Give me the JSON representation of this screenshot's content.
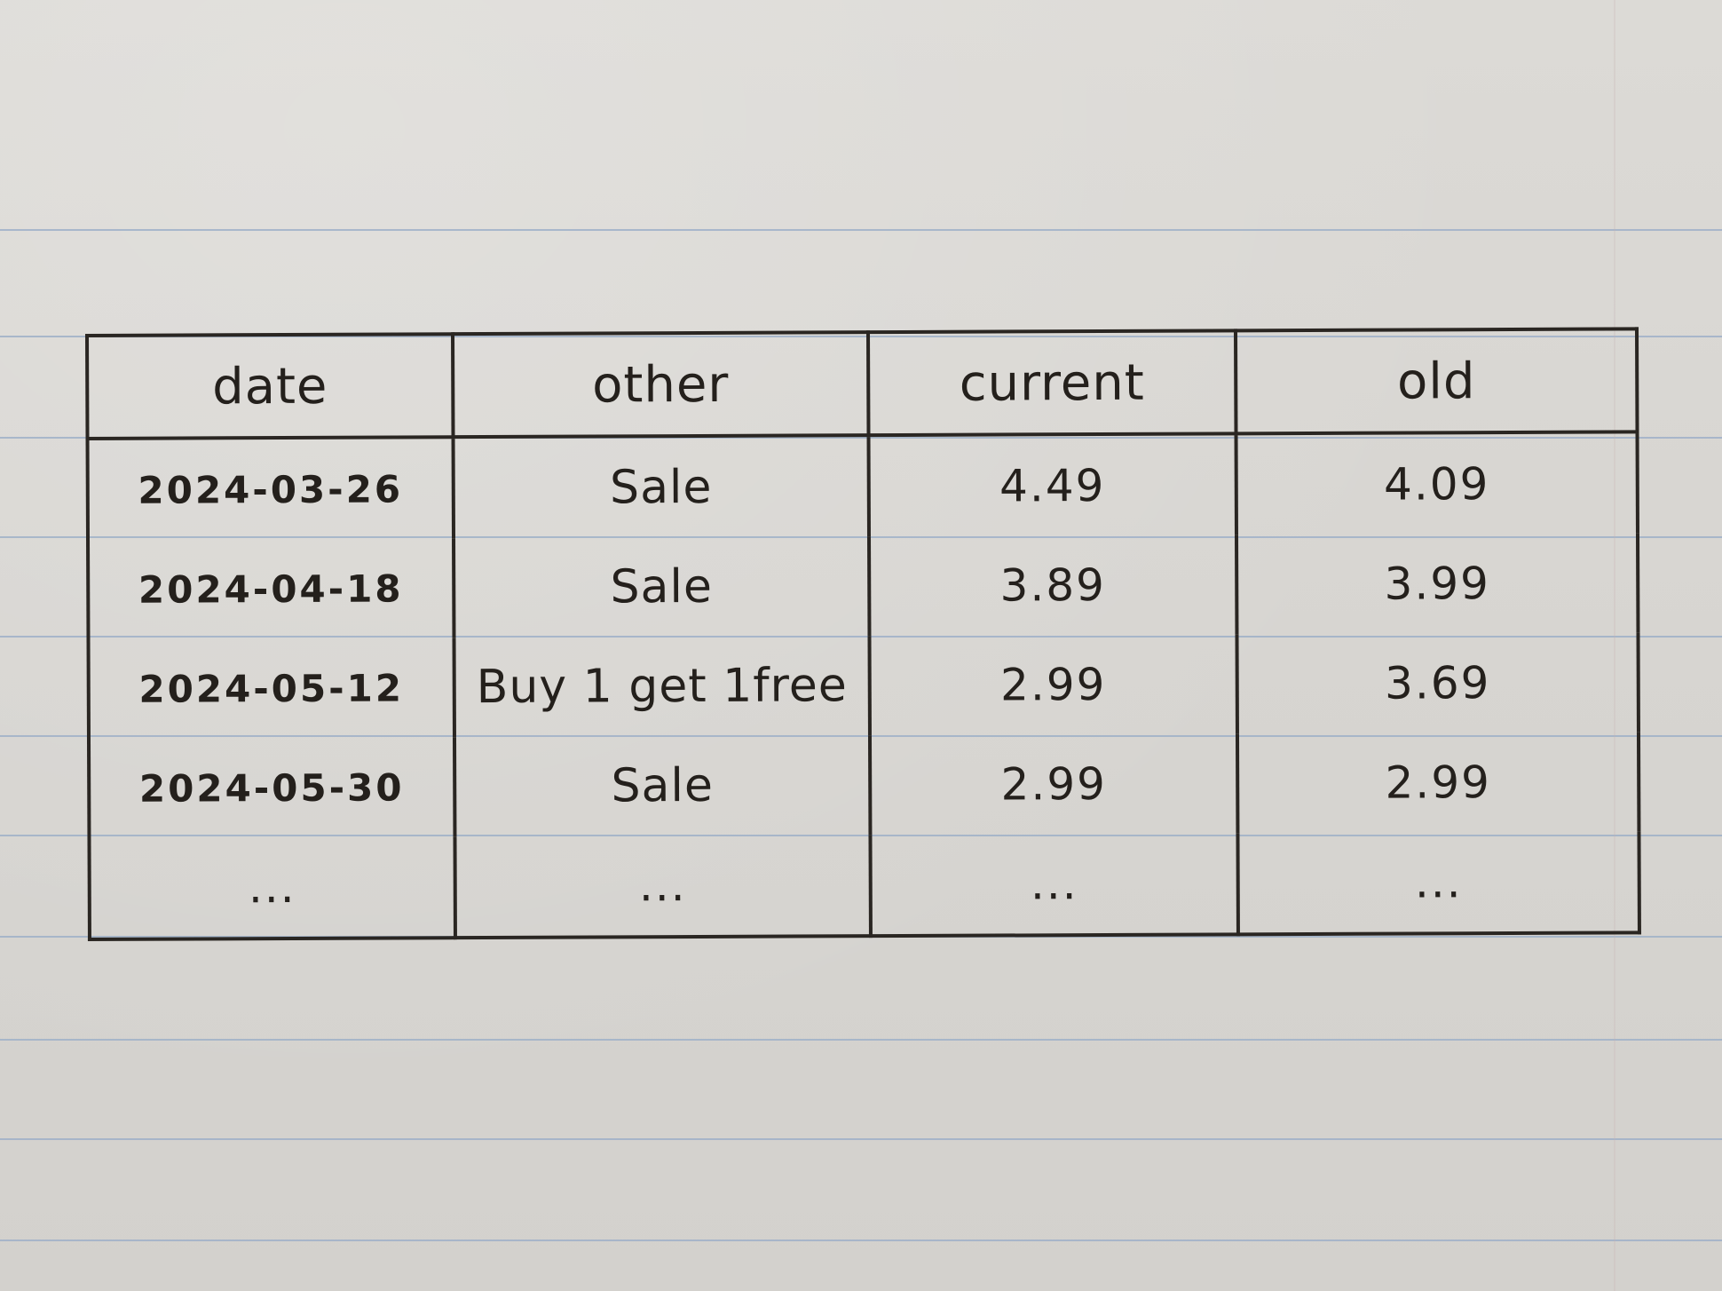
{
  "table": {
    "headers": [
      "date",
      "other",
      "current",
      "old"
    ],
    "rows": [
      [
        "2024-03-26",
        "Sale",
        "4.49",
        "4.09"
      ],
      [
        "2024-04-18",
        "Sale",
        "3.89",
        "3.99"
      ],
      [
        "2024-05-12",
        "Buy 1 get 1free",
        "2.99",
        "3.69"
      ],
      [
        "2024-05-30",
        "Sale",
        "2.99",
        "2.99"
      ],
      [
        "...",
        "...",
        "...",
        "..."
      ]
    ]
  },
  "colors": {
    "paper": "#d9d7d3",
    "ink": "#24201c",
    "rule": "#9fb0c8"
  }
}
